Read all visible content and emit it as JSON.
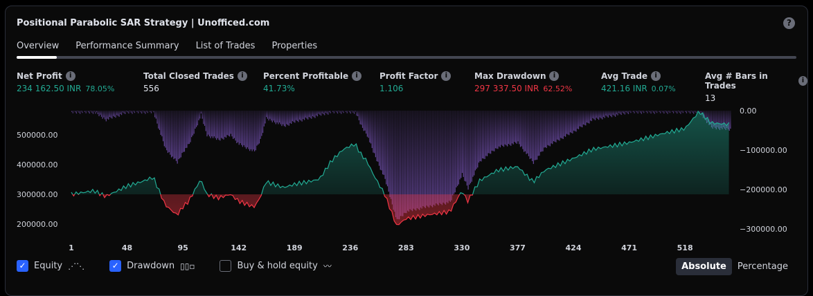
{
  "title": "Positional Parabolic SAR Strategy | Unofficed.com",
  "tabs": [
    "Overview",
    "Performance Summary",
    "List of Trades",
    "Properties"
  ],
  "metrics": [
    {
      "label": "Net Profit",
      "value": "234 162.50 INR",
      "pct": "78.05%",
      "color": "g"
    },
    {
      "label": "Total Closed Trades",
      "value": "556",
      "pct": "",
      "color": "w"
    },
    {
      "label": "Percent Profitable",
      "value": "41.73%",
      "pct": "",
      "color": "g"
    },
    {
      "label": "Profit Factor",
      "value": "1.106",
      "pct": "",
      "color": "g"
    },
    {
      "label": "Max Drawdown",
      "value": "297 337.50 INR",
      "pct": "62.52%",
      "color": "r"
    },
    {
      "label": "Avg Trade",
      "value": "421.16 INR",
      "pct": "0.07%",
      "color": "g"
    },
    {
      "label": "Avg # Bars in Trades",
      "value": "13",
      "pct": "",
      "color": "w"
    }
  ],
  "legend": {
    "equity": "Equity",
    "drawdown": "Drawdown",
    "buyhold": "Buy & hold equity",
    "equity_checked": true,
    "drawdown_checked": true,
    "buyhold_checked": false
  },
  "mode": {
    "absolute": "Absolute",
    "percentage": "Percentage",
    "selected": "Absolute"
  },
  "colors": {
    "profit": "#22ab94",
    "loss": "#f23645",
    "drawdown": "#7e57c2"
  },
  "chart_data": {
    "type": "line",
    "x_ticks": [
      1,
      48,
      95,
      142,
      189,
      236,
      283,
      330,
      377,
      424,
      471,
      518
    ],
    "left_ticks": [
      "500000.00",
      "400000.00",
      "300000.00",
      "200000.00"
    ],
    "left_tick_values": [
      500000,
      400000,
      300000,
      200000
    ],
    "right_ticks": [
      "0.00",
      "−100000.00",
      "−200000.00",
      "−300000.00"
    ],
    "right_tick_values": [
      0,
      -100000,
      -200000,
      -300000
    ],
    "baseline": 300000,
    "x": [
      1,
      20,
      30,
      48,
      60,
      70,
      80,
      90,
      95,
      100,
      110,
      115,
      125,
      135,
      142,
      155,
      160,
      165,
      180,
      190,
      200,
      210,
      220,
      230,
      240,
      245,
      250,
      255,
      265,
      275,
      283,
      300,
      320,
      330,
      335,
      345,
      360,
      377,
      390,
      400,
      424,
      440,
      471,
      500,
      518,
      530,
      540,
      556
    ],
    "equity": [
      300000,
      312000,
      293000,
      328000,
      342000,
      358000,
      265000,
      230000,
      258000,
      277000,
      351000,
      300000,
      288000,
      300000,
      277000,
      258000,
      288000,
      342000,
      323000,
      335000,
      342000,
      351000,
      412000,
      451000,
      470000,
      435000,
      412000,
      370000,
      300000,
      195000,
      218000,
      230000,
      242000,
      312000,
      277000,
      346000,
      381000,
      393000,
      342000,
      381000,
      421000,
      451000,
      474000,
      505000,
      521000,
      579000,
      540000,
      535000
    ],
    "drawdown": [
      0,
      0,
      -19000,
      0,
      0,
      0,
      -93000,
      -128000,
      -100000,
      -81000,
      -7000,
      -58000,
      -70000,
      -58000,
      -81000,
      -100000,
      -70000,
      -16000,
      -35000,
      -23000,
      -16000,
      -7000,
      0,
      0,
      0,
      -35000,
      -58000,
      -100000,
      -170000,
      -275000,
      -252000,
      -240000,
      -228000,
      -158000,
      -193000,
      -124000,
      -89000,
      -77000,
      -128000,
      -89000,
      -49000,
      -19000,
      0,
      0,
      0,
      0,
      -39000,
      -44000
    ]
  }
}
